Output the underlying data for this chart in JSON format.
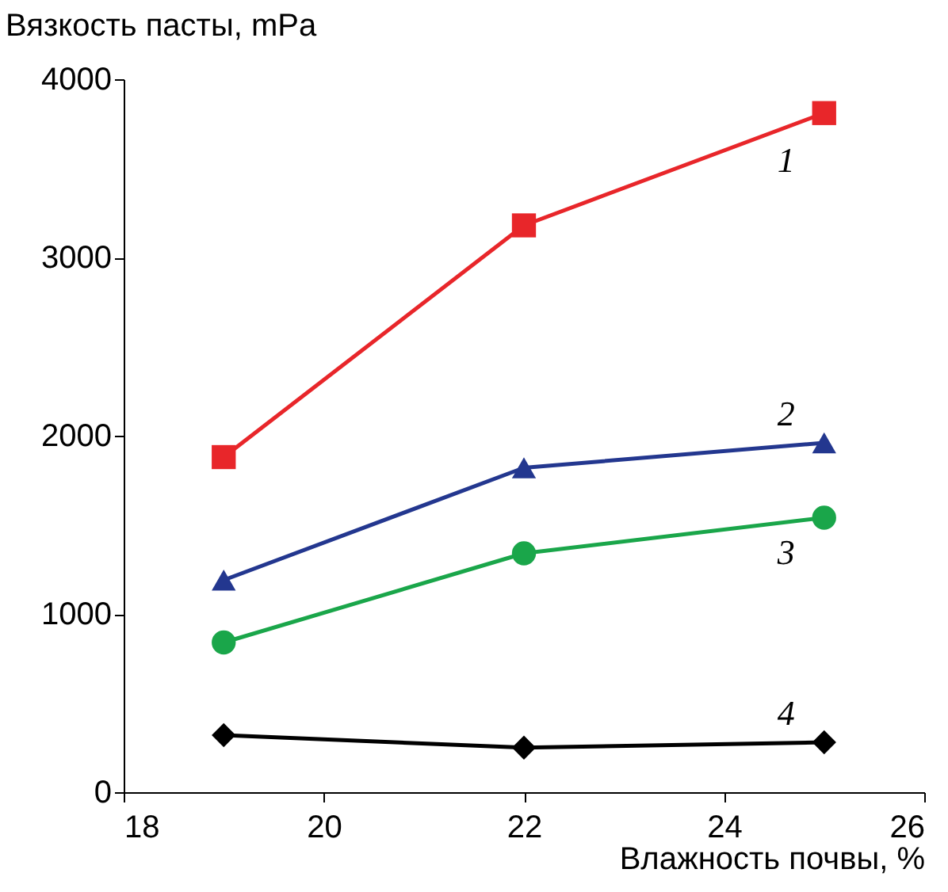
{
  "chart_data": {
    "type": "line",
    "xlabel": "Влажность почвы, %",
    "ylabel": "Вязкость пасты, mPa",
    "x": [
      19,
      22,
      25
    ],
    "series": [
      {
        "name": "1",
        "color": "#e8262a",
        "marker": "square",
        "values": [
          1880,
          3180,
          3810
        ]
      },
      {
        "name": "2",
        "color": "#23378f",
        "marker": "triangle",
        "values": [
          1190,
          1820,
          1960
        ]
      },
      {
        "name": "3",
        "color": "#1aa64a",
        "marker": "circle",
        "values": [
          840,
          1340,
          1540
        ]
      },
      {
        "name": "4",
        "color": "#000000",
        "marker": "diamond",
        "values": [
          320,
          250,
          280
        ]
      }
    ],
    "xlim": [
      18,
      26
    ],
    "xticks": [
      18,
      20,
      22,
      24,
      26
    ],
    "ylim": [
      0,
      4000
    ],
    "yticks": [
      0,
      1000,
      2000,
      3000,
      4000
    ],
    "grid": false,
    "legend": false,
    "line_style": "solid"
  }
}
